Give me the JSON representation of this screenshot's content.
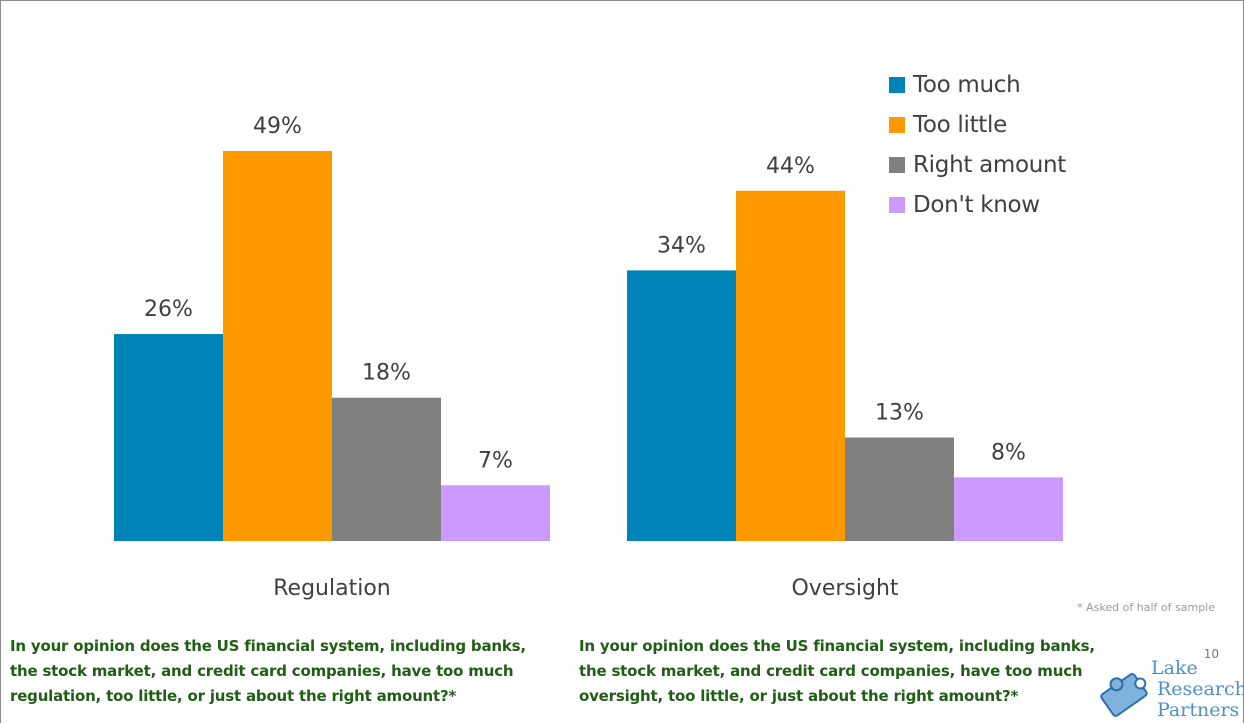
{
  "chart_data": {
    "type": "bar",
    "categories": [
      "Regulation",
      "Oversight"
    ],
    "series": [
      {
        "name": "Too much",
        "values": [
          26,
          34
        ],
        "labels": [
          "26%",
          "34%"
        ],
        "color": "#0083b7"
      },
      {
        "name": "Too little",
        "values": [
          49,
          44
        ],
        "labels": [
          "49%",
          "44%"
        ],
        "color": "#ff9900"
      },
      {
        "name": "Right amount",
        "values": [
          18,
          13
        ],
        "labels": [
          "18%",
          "13%"
        ],
        "color": "#808080"
      },
      {
        "name": "Don't know",
        "values": [
          7,
          8
        ],
        "labels": [
          "7%",
          "8%"
        ],
        "color": "#cc99ff"
      }
    ],
    "ylim": [
      0,
      55
    ],
    "grid": false,
    "legend_position": "top-right"
  },
  "footnote": "* Asked of half of sample",
  "questions": {
    "left": "In your opinion does the US financial system, including banks, the stock market, and credit card companies, have too much regulation, too little, or just about the right amount?*",
    "right": "In your opinion does the US financial system, including banks, the stock market, and credit card companies, have too much oversight, too little, or just about the right amount?*"
  },
  "page_number": "10",
  "logo": {
    "line1": "Lake",
    "line2": "Research",
    "line3": "Partners"
  }
}
